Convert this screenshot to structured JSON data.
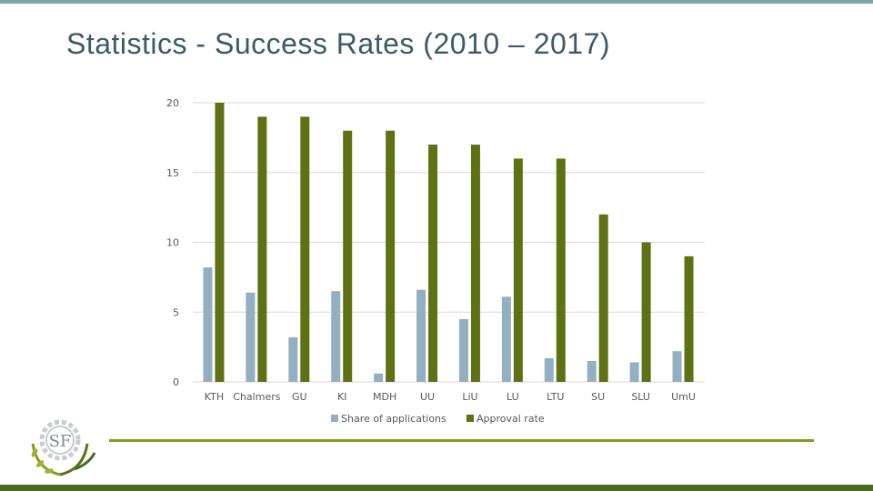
{
  "slide": {
    "title": "Statistics - Success Rates (2010 – 2017)"
  },
  "logo": {
    "letters": "SF"
  },
  "colors": {
    "top_bar": "#7fa3a6",
    "title": "#3d5a66",
    "divider": "#8a9a1e",
    "bottom_bar": "#4a6a1e"
  },
  "chart_data": {
    "type": "bar",
    "categories": [
      "KTH",
      "Chalmers",
      "GU",
      "KI",
      "MDH",
      "UU",
      "LiU",
      "LU",
      "LTU",
      "SU",
      "SLU",
      "UmU"
    ],
    "series": [
      {
        "name": "Share of applications",
        "color": "#94afc2",
        "values": [
          8.2,
          6.4,
          3.2,
          6.5,
          0.6,
          6.6,
          4.5,
          6.1,
          1.7,
          1.5,
          1.4,
          2.2
        ]
      },
      {
        "name": "Approval rate",
        "color": "#5e7214",
        "values": [
          20,
          19,
          19,
          18,
          18,
          17,
          17,
          16,
          16,
          12,
          10,
          9
        ]
      }
    ],
    "ylim": [
      0,
      20
    ],
    "yticks": [
      "0",
      "5",
      "10",
      "15",
      "20"
    ],
    "grid": true,
    "legend_position": "bottom"
  }
}
